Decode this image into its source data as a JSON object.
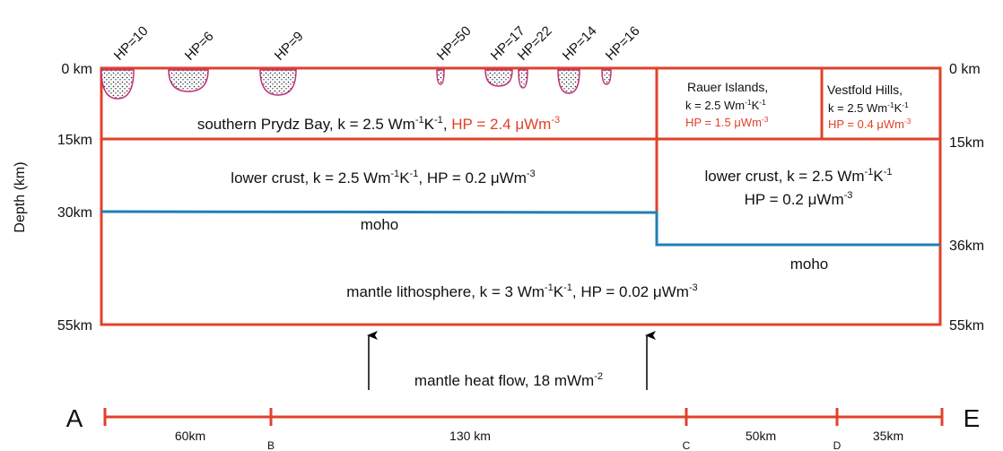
{
  "depth_axis": {
    "title": "Depth (km)",
    "left_ticks": [
      "0 km",
      "15km",
      "30km",
      "55km"
    ],
    "right_ticks": [
      "0 km",
      "15km",
      "36km",
      "55km"
    ]
  },
  "plutons": [
    "HP=10",
    "HP=6",
    "HP=9",
    "HP=50",
    "HP=17",
    "HP=22",
    "HP=14",
    "HP=16"
  ],
  "regions": {
    "upper_prydz": {
      "text": [
        "southern Prydz Bay, k = 2.5 Wm",
        "-1",
        "K",
        "-1",
        ", "
      ],
      "hp": [
        "HP = 2.4 μWm",
        "-3"
      ]
    },
    "rauer": {
      "name": "Rauer Islands,",
      "k": [
        "k = 2.5 Wm",
        "-1",
        "K",
        "-1"
      ],
      "hp": [
        "HP = 1.5 μWm",
        "-3"
      ]
    },
    "vestfold": {
      "name": "Vestfold Hills,",
      "k": [
        "k = 2.5 Wm",
        "-1",
        "K",
        "-1"
      ],
      "hp": [
        "HP = 0.4 μWm",
        "-3"
      ]
    },
    "lower_crust_left": [
      "lower crust, k = 2.5 Wm",
      "-1",
      "K",
      "-1",
      ", HP = 0.2 μWm",
      "-3"
    ],
    "lower_crust_right": {
      "line1": [
        "lower crust, k = 2.5 Wm",
        "-1",
        "K",
        "-1"
      ],
      "line2": [
        "HP = 0.2 μWm",
        "-3"
      ]
    },
    "moho_left": "moho",
    "moho_right": "moho",
    "mantle": [
      "mantle lithosphere, k = 3 Wm",
      "-1",
      "K",
      "-1",
      ", HP = 0.02 μWm",
      "-3"
    ]
  },
  "heat_flow": [
    "mantle heat flow, 18 mWm",
    "-2"
  ],
  "profile": {
    "start": "A",
    "end": "E",
    "points": [
      "B",
      "C",
      "D"
    ],
    "segments": [
      "60km",
      "130 km",
      "50km",
      "35km"
    ]
  }
}
